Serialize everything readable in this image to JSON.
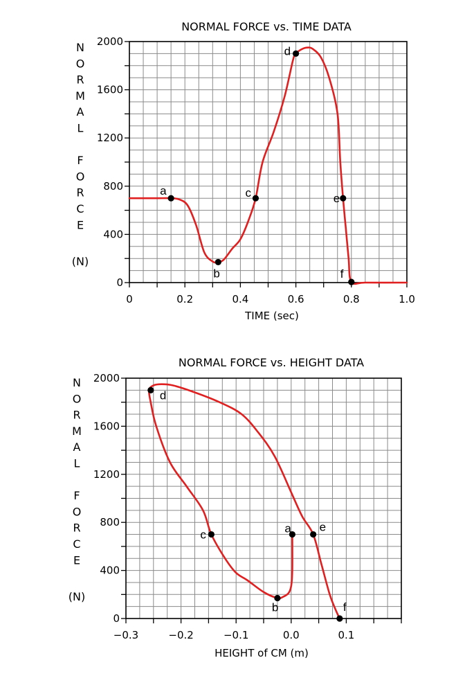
{
  "colors": {
    "curve": "#e02020",
    "grid": "#8a8a8a",
    "point": "#000000"
  },
  "chart_data": [
    {
      "type": "line",
      "title": "NORMAL FORCE vs. TIME DATA",
      "xlabel": "TIME (sec)",
      "ylabel_letters": [
        "N",
        "O",
        "R",
        "M",
        "A",
        "L",
        "",
        "F",
        "O",
        "R",
        "C",
        "E",
        "",
        "(N)"
      ],
      "xlim": [
        0,
        1.0
      ],
      "ylim": [
        0,
        2000
      ],
      "x_ticks": [
        "0",
        "0.2",
        "0.4",
        "0.6",
        "0.8",
        "1.0"
      ],
      "y_ticks": [
        "0",
        "400",
        "800",
        "1200",
        "1600",
        "2000"
      ],
      "grid": true,
      "series": [
        {
          "x": [
            0,
            0.05,
            0.1,
            0.15,
            0.18,
            0.21,
            0.24,
            0.27,
            0.3,
            0.32,
            0.34,
            0.37,
            0.4,
            0.43,
            0.455,
            0.48,
            0.52,
            0.56,
            0.59,
            0.6,
            0.62,
            0.64,
            0.66,
            0.69,
            0.72,
            0.75,
            0.76,
            0.77,
            0.78,
            0.79,
            0.8,
            0.85,
            1.0
          ],
          "y": [
            700,
            700,
            700,
            700,
            690,
            640,
            480,
            250,
            175,
            170,
            190,
            280,
            360,
            520,
            700,
            1000,
            1250,
            1550,
            1850,
            1900,
            1935,
            1950,
            1940,
            1870,
            1700,
            1400,
            1000,
            700,
            450,
            200,
            5,
            0,
            0
          ]
        }
      ],
      "points": [
        {
          "label": "a",
          "x": 0.15,
          "y": 700
        },
        {
          "label": "b",
          "x": 0.32,
          "y": 170
        },
        {
          "label": "c",
          "x": 0.455,
          "y": 700
        },
        {
          "label": "d",
          "x": 0.6,
          "y": 1900
        },
        {
          "label": "e",
          "x": 0.77,
          "y": 700
        },
        {
          "label": "f",
          "x": 0.8,
          "y": 5
        }
      ]
    },
    {
      "type": "line",
      "title": "NORMAL FORCE vs. HEIGHT DATA",
      "xlabel": "HEIGHT of CM (m)",
      "ylabel_letters": [
        "N",
        "O",
        "R",
        "M",
        "A",
        "L",
        "",
        "F",
        "O",
        "R",
        "C",
        "E",
        "",
        "(N)"
      ],
      "xlim": [
        -0.3,
        0.2
      ],
      "ylim": [
        0,
        2000
      ],
      "x_ticks": [
        "−0.3",
        "−0.2",
        "−0.1",
        "0.0",
        "0.1"
      ],
      "x_tick_values": [
        -0.3,
        -0.2,
        -0.1,
        0.0,
        0.1
      ],
      "y_ticks": [
        "0",
        "400",
        "800",
        "1200",
        "1600",
        "2000"
      ],
      "grid": true,
      "series": [
        {
          "x": [
            0.002,
            0.002,
            0.0,
            -0.005,
            -0.015,
            -0.025,
            -0.05,
            -0.08,
            -0.1,
            -0.12,
            -0.145,
            -0.16,
            -0.19,
            -0.22,
            -0.245,
            -0.255,
            -0.258,
            -0.25,
            -0.235,
            -0.215,
            -0.18,
            -0.13,
            -0.09,
            -0.06,
            -0.03,
            0.0,
            0.02,
            0.04,
            0.055,
            0.07,
            0.08,
            0.088
          ],
          "y": [
            700,
            400,
            270,
            210,
            180,
            170,
            220,
            320,
            380,
            500,
            700,
            900,
            1100,
            1300,
            1600,
            1800,
            1900,
            1940,
            1950,
            1940,
            1890,
            1800,
            1700,
            1550,
            1350,
            1050,
            850,
            700,
            450,
            200,
            80,
            0
          ]
        }
      ],
      "points": [
        {
          "label": "a",
          "x": 0.002,
          "y": 700
        },
        {
          "label": "b",
          "x": -0.025,
          "y": 170
        },
        {
          "label": "c",
          "x": -0.145,
          "y": 700
        },
        {
          "label": "d",
          "x": -0.255,
          "y": 1900
        },
        {
          "label": "e",
          "x": 0.04,
          "y": 700
        },
        {
          "label": "f",
          "x": 0.088,
          "y": 0
        }
      ]
    }
  ]
}
